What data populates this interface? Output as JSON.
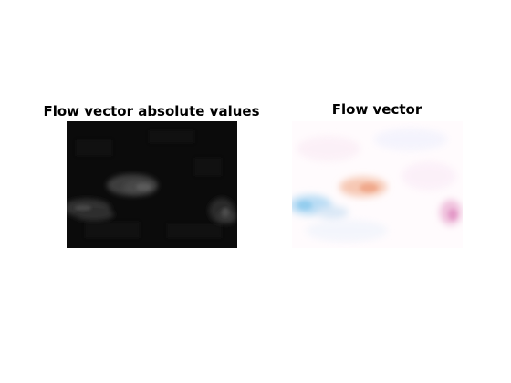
{
  "figure": {
    "background": "#ffffff",
    "panels": [
      {
        "title": "Flow vector absolute values",
        "colormap": "gray",
        "background": "#0b0b0b"
      },
      {
        "title": "Flow vector",
        "colormap": "flow-hsv",
        "background": "#ffffff"
      }
    ]
  }
}
